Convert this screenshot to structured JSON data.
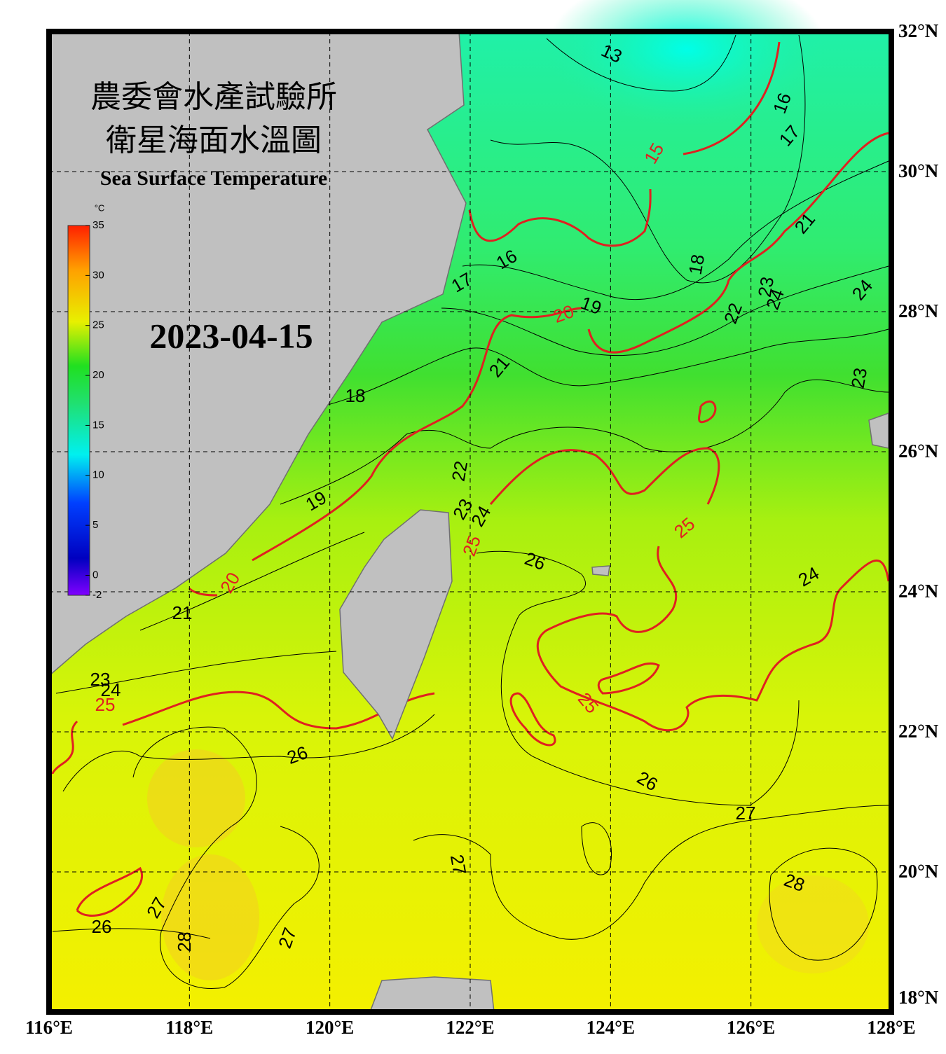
{
  "map": {
    "title_zh": "農委會水產試驗所",
    "subtitle_zh": "衛星海面水溫圖",
    "title_en": "Sea Surface Temperature",
    "date": "2023-04-15",
    "xlim": [
      116,
      128
    ],
    "xticks": [
      {
        "value": 116,
        "label": "116°E"
      },
      {
        "value": 118,
        "label": "118°E"
      },
      {
        "value": 120,
        "label": "120°E"
      },
      {
        "value": 122,
        "label": "122°E"
      },
      {
        "value": 124,
        "label": "124°E"
      },
      {
        "value": 126,
        "label": "126°E"
      },
      {
        "value": 128,
        "label": "128°E"
      }
    ],
    "ylim": [
      18,
      32
    ],
    "yticks": [
      {
        "value": 18,
        "label": "18°N"
      },
      {
        "value": 20,
        "label": "20°N"
      },
      {
        "value": 22,
        "label": "22°N"
      },
      {
        "value": 24,
        "label": "24°N"
      },
      {
        "value": 26,
        "label": "26°N"
      },
      {
        "value": 28,
        "label": "28°N"
      },
      {
        "value": 30,
        "label": "30°N"
      },
      {
        "value": 32,
        "label": "32°N"
      }
    ],
    "colorbar": {
      "unit": "°C",
      "range": [
        -2,
        35
      ],
      "ticks": [
        -2,
        0,
        5,
        10,
        15,
        20,
        25,
        30,
        35
      ]
    },
    "contour_labels": [
      13,
      16,
      17,
      15,
      21,
      16,
      17,
      18,
      19,
      20,
      22,
      23,
      24,
      24,
      23,
      21,
      18,
      22,
      19,
      23,
      24,
      25,
      26,
      25,
      24,
      20,
      21,
      23,
      24,
      25,
      25,
      26,
      26,
      27,
      27,
      28,
      27,
      26,
      28,
      27
    ]
  }
}
